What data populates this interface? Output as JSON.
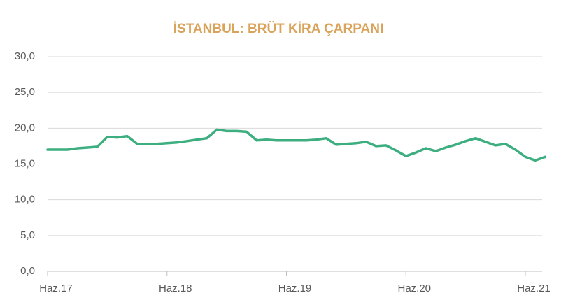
{
  "chart_data": {
    "type": "line",
    "title": "İSTANBUL: BRÜT KİRA ÇARPANI",
    "categories": [
      "Haz.17",
      null,
      null,
      null,
      null,
      null,
      null,
      null,
      null,
      null,
      null,
      null,
      "Haz.18",
      null,
      null,
      null,
      null,
      null,
      null,
      null,
      null,
      null,
      null,
      null,
      "Haz.19",
      null,
      null,
      null,
      null,
      null,
      null,
      null,
      null,
      null,
      null,
      null,
      "Haz.20",
      null,
      null,
      null,
      null,
      null,
      null,
      null,
      null,
      null,
      null,
      null,
      "Haz.21",
      null,
      null
    ],
    "series": [
      {
        "name": "Brüt kira çarpanı",
        "color": "#3dae7f",
        "values": [
          17.0,
          17.0,
          17.0,
          17.2,
          17.3,
          17.4,
          18.8,
          18.7,
          18.9,
          17.8,
          17.8,
          17.8,
          17.9,
          18.0,
          18.2,
          18.4,
          18.6,
          19.8,
          19.6,
          19.6,
          19.5,
          18.3,
          18.4,
          18.3,
          18.3,
          18.3,
          18.3,
          18.4,
          18.6,
          17.7,
          17.8,
          17.9,
          18.1,
          17.5,
          17.6,
          16.9,
          16.1,
          16.6,
          17.2,
          16.8,
          17.3,
          17.7,
          18.2,
          18.6,
          18.1,
          17.6,
          17.8,
          17.0,
          16.0,
          15.5,
          16.0
        ]
      }
    ],
    "ylim": [
      0,
      30
    ],
    "yticks": [
      {
        "value": 0,
        "label": "0,0"
      },
      {
        "value": 5,
        "label": "5,0"
      },
      {
        "value": 10,
        "label": "10,0"
      },
      {
        "value": 15,
        "label": "15,0"
      },
      {
        "value": 20,
        "label": "20,0"
      },
      {
        "value": 25,
        "label": "25,0"
      },
      {
        "value": 30,
        "label": "30,0"
      }
    ],
    "grid": true
  }
}
